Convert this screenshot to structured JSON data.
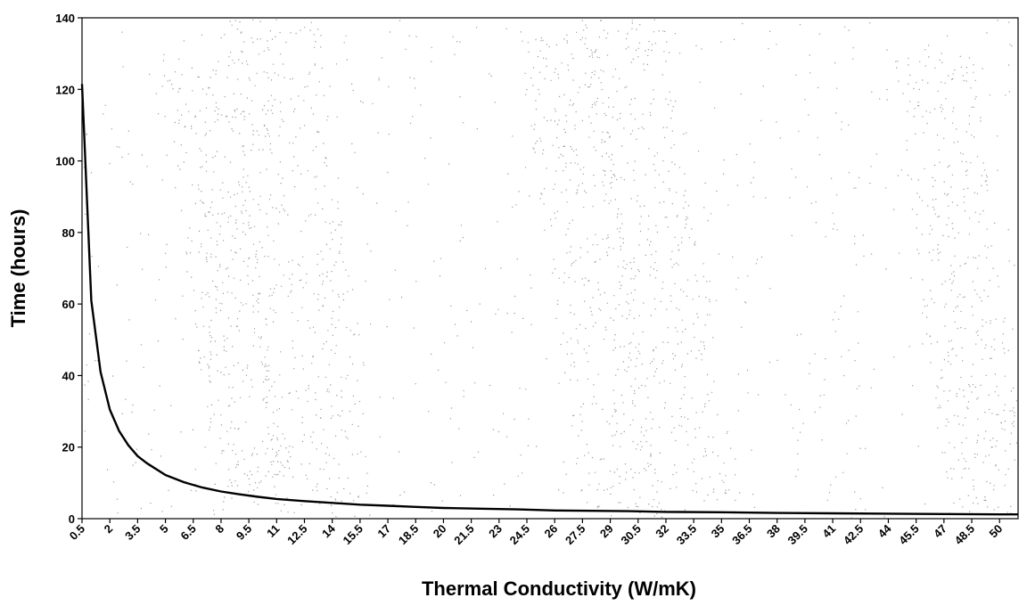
{
  "chart_data": {
    "type": "line",
    "title": "",
    "xlabel": "Thermal Conductivity (W/mK)",
    "ylabel": "Time (hours)",
    "x_tick_labels": [
      "0.5",
      "2",
      "3.5",
      "5",
      "6.5",
      "8",
      "9.5",
      "11",
      "12.5",
      "14",
      "15.5",
      "17",
      "18.5",
      "20",
      "21.5",
      "23",
      "24.5",
      "26",
      "27.5",
      "29",
      "30.5",
      "32",
      "33.5",
      "35",
      "36.5",
      "38",
      "39.5",
      "41",
      "42.5",
      "44",
      "45.5",
      "47",
      "48.5",
      "50"
    ],
    "y_tick_labels": [
      "0",
      "20",
      "40",
      "60",
      "80",
      "100",
      "120",
      "140"
    ],
    "xlim": [
      0.5,
      51.0
    ],
    "ylim": [
      0,
      140
    ],
    "grid": false,
    "series": [
      {
        "x": [
          0.5,
          1.0,
          1.5,
          2.0,
          2.5,
          3.0,
          3.5,
          4.0,
          5.0,
          6.0,
          7.0,
          8.0,
          9.0,
          10.0,
          11.0,
          12.5,
          14.0,
          15.5,
          17.0,
          18.5,
          20.0,
          22.0,
          24.0,
          26.0,
          28.0,
          30.0,
          32.0,
          35.0,
          38.0,
          41.0,
          44.0,
          47.0,
          50.0,
          51.0
        ],
        "y": [
          121.5,
          61.0,
          41.0,
          30.5,
          24.5,
          20.5,
          17.5,
          15.5,
          12.2,
          10.2,
          8.7,
          7.6,
          6.8,
          6.1,
          5.5,
          4.9,
          4.4,
          3.9,
          3.6,
          3.3,
          3.0,
          2.8,
          2.6,
          2.3,
          2.2,
          2.1,
          1.9,
          1.8,
          1.6,
          1.5,
          1.4,
          1.3,
          1.2,
          1.2
        ],
        "color": "#000000"
      }
    ],
    "background_texture": "gray speckle noise (scanned image artifact)"
  }
}
